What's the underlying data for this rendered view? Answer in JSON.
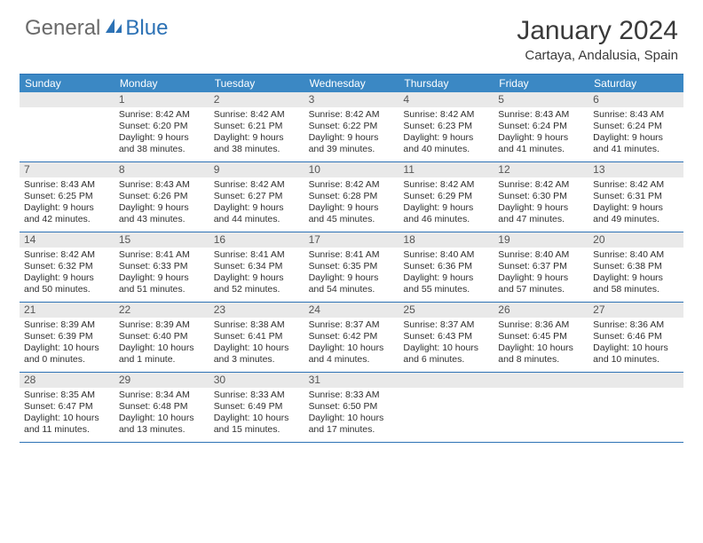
{
  "logo": {
    "text1": "General",
    "text2": "Blue"
  },
  "title": "January 2024",
  "location": "Cartaya, Andalusia, Spain",
  "colors": {
    "header_bg": "#3b88c4",
    "header_text": "#ffffff",
    "rule": "#2d72b5",
    "daynum_bg": "#e9e9e9",
    "body_text": "#2f2f2f"
  },
  "day_headers": [
    "Sunday",
    "Monday",
    "Tuesday",
    "Wednesday",
    "Thursday",
    "Friday",
    "Saturday"
  ],
  "days": [
    {
      "n": "",
      "sr": "",
      "ss": "",
      "dl": ""
    },
    {
      "n": "1",
      "sr": "Sunrise: 8:42 AM",
      "ss": "Sunset: 6:20 PM",
      "dl": "Daylight: 9 hours and 38 minutes."
    },
    {
      "n": "2",
      "sr": "Sunrise: 8:42 AM",
      "ss": "Sunset: 6:21 PM",
      "dl": "Daylight: 9 hours and 38 minutes."
    },
    {
      "n": "3",
      "sr": "Sunrise: 8:42 AM",
      "ss": "Sunset: 6:22 PM",
      "dl": "Daylight: 9 hours and 39 minutes."
    },
    {
      "n": "4",
      "sr": "Sunrise: 8:42 AM",
      "ss": "Sunset: 6:23 PM",
      "dl": "Daylight: 9 hours and 40 minutes."
    },
    {
      "n": "5",
      "sr": "Sunrise: 8:43 AM",
      "ss": "Sunset: 6:24 PM",
      "dl": "Daylight: 9 hours and 41 minutes."
    },
    {
      "n": "6",
      "sr": "Sunrise: 8:43 AM",
      "ss": "Sunset: 6:24 PM",
      "dl": "Daylight: 9 hours and 41 minutes."
    },
    {
      "n": "7",
      "sr": "Sunrise: 8:43 AM",
      "ss": "Sunset: 6:25 PM",
      "dl": "Daylight: 9 hours and 42 minutes."
    },
    {
      "n": "8",
      "sr": "Sunrise: 8:43 AM",
      "ss": "Sunset: 6:26 PM",
      "dl": "Daylight: 9 hours and 43 minutes."
    },
    {
      "n": "9",
      "sr": "Sunrise: 8:42 AM",
      "ss": "Sunset: 6:27 PM",
      "dl": "Daylight: 9 hours and 44 minutes."
    },
    {
      "n": "10",
      "sr": "Sunrise: 8:42 AM",
      "ss": "Sunset: 6:28 PM",
      "dl": "Daylight: 9 hours and 45 minutes."
    },
    {
      "n": "11",
      "sr": "Sunrise: 8:42 AM",
      "ss": "Sunset: 6:29 PM",
      "dl": "Daylight: 9 hours and 46 minutes."
    },
    {
      "n": "12",
      "sr": "Sunrise: 8:42 AM",
      "ss": "Sunset: 6:30 PM",
      "dl": "Daylight: 9 hours and 47 minutes."
    },
    {
      "n": "13",
      "sr": "Sunrise: 8:42 AM",
      "ss": "Sunset: 6:31 PM",
      "dl": "Daylight: 9 hours and 49 minutes."
    },
    {
      "n": "14",
      "sr": "Sunrise: 8:42 AM",
      "ss": "Sunset: 6:32 PM",
      "dl": "Daylight: 9 hours and 50 minutes."
    },
    {
      "n": "15",
      "sr": "Sunrise: 8:41 AM",
      "ss": "Sunset: 6:33 PM",
      "dl": "Daylight: 9 hours and 51 minutes."
    },
    {
      "n": "16",
      "sr": "Sunrise: 8:41 AM",
      "ss": "Sunset: 6:34 PM",
      "dl": "Daylight: 9 hours and 52 minutes."
    },
    {
      "n": "17",
      "sr": "Sunrise: 8:41 AM",
      "ss": "Sunset: 6:35 PM",
      "dl": "Daylight: 9 hours and 54 minutes."
    },
    {
      "n": "18",
      "sr": "Sunrise: 8:40 AM",
      "ss": "Sunset: 6:36 PM",
      "dl": "Daylight: 9 hours and 55 minutes."
    },
    {
      "n": "19",
      "sr": "Sunrise: 8:40 AM",
      "ss": "Sunset: 6:37 PM",
      "dl": "Daylight: 9 hours and 57 minutes."
    },
    {
      "n": "20",
      "sr": "Sunrise: 8:40 AM",
      "ss": "Sunset: 6:38 PM",
      "dl": "Daylight: 9 hours and 58 minutes."
    },
    {
      "n": "21",
      "sr": "Sunrise: 8:39 AM",
      "ss": "Sunset: 6:39 PM",
      "dl": "Daylight: 10 hours and 0 minutes."
    },
    {
      "n": "22",
      "sr": "Sunrise: 8:39 AM",
      "ss": "Sunset: 6:40 PM",
      "dl": "Daylight: 10 hours and 1 minute."
    },
    {
      "n": "23",
      "sr": "Sunrise: 8:38 AM",
      "ss": "Sunset: 6:41 PM",
      "dl": "Daylight: 10 hours and 3 minutes."
    },
    {
      "n": "24",
      "sr": "Sunrise: 8:37 AM",
      "ss": "Sunset: 6:42 PM",
      "dl": "Daylight: 10 hours and 4 minutes."
    },
    {
      "n": "25",
      "sr": "Sunrise: 8:37 AM",
      "ss": "Sunset: 6:43 PM",
      "dl": "Daylight: 10 hours and 6 minutes."
    },
    {
      "n": "26",
      "sr": "Sunrise: 8:36 AM",
      "ss": "Sunset: 6:45 PM",
      "dl": "Daylight: 10 hours and 8 minutes."
    },
    {
      "n": "27",
      "sr": "Sunrise: 8:36 AM",
      "ss": "Sunset: 6:46 PM",
      "dl": "Daylight: 10 hours and 10 minutes."
    },
    {
      "n": "28",
      "sr": "Sunrise: 8:35 AM",
      "ss": "Sunset: 6:47 PM",
      "dl": "Daylight: 10 hours and 11 minutes."
    },
    {
      "n": "29",
      "sr": "Sunrise: 8:34 AM",
      "ss": "Sunset: 6:48 PM",
      "dl": "Daylight: 10 hours and 13 minutes."
    },
    {
      "n": "30",
      "sr": "Sunrise: 8:33 AM",
      "ss": "Sunset: 6:49 PM",
      "dl": "Daylight: 10 hours and 15 minutes."
    },
    {
      "n": "31",
      "sr": "Sunrise: 8:33 AM",
      "ss": "Sunset: 6:50 PM",
      "dl": "Daylight: 10 hours and 17 minutes."
    },
    {
      "n": "",
      "sr": "",
      "ss": "",
      "dl": ""
    },
    {
      "n": "",
      "sr": "",
      "ss": "",
      "dl": ""
    },
    {
      "n": "",
      "sr": "",
      "ss": "",
      "dl": ""
    }
  ]
}
